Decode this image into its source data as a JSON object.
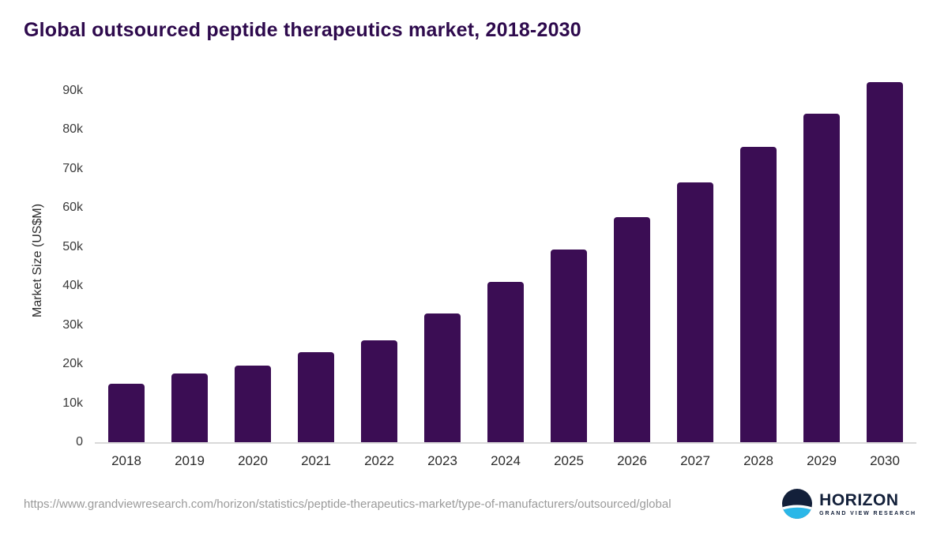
{
  "chart_data": {
    "type": "bar",
    "title": "Global outsourced peptide therapeutics market, 2018-2030",
    "xlabel": "",
    "ylabel": "Market Size (US$M)",
    "categories": [
      "2018",
      "2019",
      "2020",
      "2021",
      "2022",
      "2023",
      "2024",
      "2025",
      "2026",
      "2027",
      "2028",
      "2029",
      "2030"
    ],
    "values": [
      15000,
      17600,
      19600,
      23100,
      26000,
      33000,
      41100,
      49400,
      57700,
      66500,
      75600,
      84200,
      92200
    ],
    "ylim": [
      0,
      93000
    ],
    "yticks": [
      0,
      10000,
      20000,
      30000,
      40000,
      50000,
      60000,
      70000,
      80000,
      90000
    ],
    "ytick_labels": [
      "0",
      "10k",
      "20k",
      "30k",
      "40k",
      "50k",
      "60k",
      "70k",
      "80k",
      "90k"
    ],
    "grid": false,
    "legend": "none",
    "bar_color": "#3b0d54"
  },
  "footer": {
    "url": "https://www.grandviewresearch.com/horizon/statistics/peptide-therapeutics-market/type-of-manufacturers/outsourced/global",
    "logo": {
      "title": "HORIZON",
      "subtitle": "GRAND VIEW RESEARCH",
      "colors": {
        "navy": "#13203a",
        "cyan": "#2bb7e8",
        "white": "#ffffff"
      }
    }
  },
  "colors": {
    "title": "#2e0a4d",
    "bar": "#3b0d54",
    "axis_line": "#d9d9d9",
    "tick_text": "#3a3a3a",
    "url_text": "#9a9a9a"
  }
}
